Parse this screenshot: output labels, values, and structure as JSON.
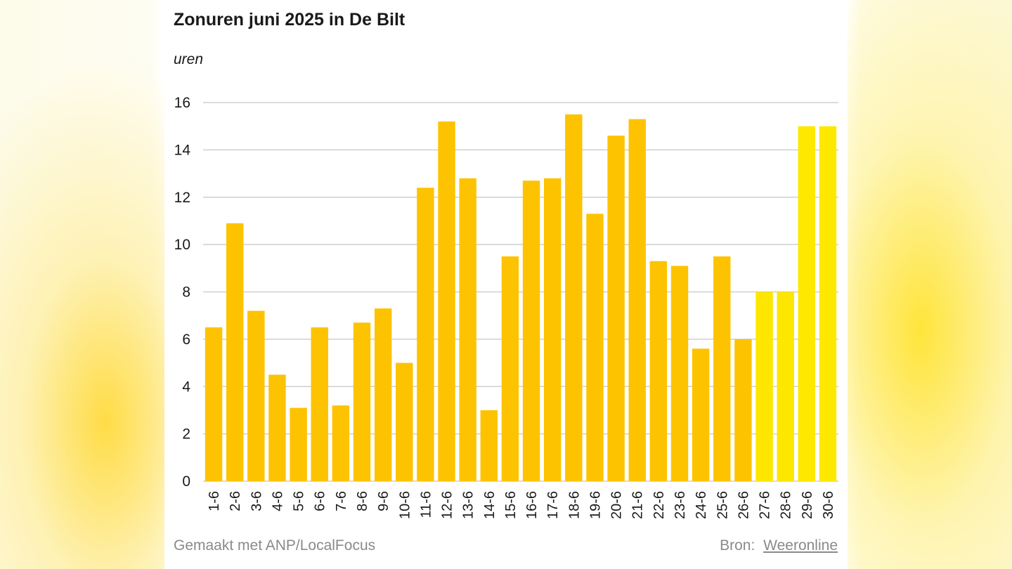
{
  "chart_data": {
    "type": "bar",
    "title": "Zonuren juni 2025 in De Bilt",
    "unit_label": "uren",
    "xlabel": "",
    "ylabel": "uren",
    "ylim": [
      0,
      16
    ],
    "yticks": [
      "0",
      "2",
      "4",
      "6",
      "8",
      "10",
      "12",
      "14",
      "16"
    ],
    "grid": true,
    "categories": [
      "1-6",
      "2-6",
      "3-6",
      "4-6",
      "5-6",
      "6-6",
      "7-6",
      "8-6",
      "9-6",
      "10-6",
      "11-6",
      "12-6",
      "13-6",
      "14-6",
      "15-6",
      "16-6",
      "17-6",
      "18-6",
      "19-6",
      "20-6",
      "21-6",
      "22-6",
      "23-6",
      "24-6",
      "25-6",
      "26-6",
      "27-6",
      "28-6",
      "29-6",
      "30-6"
    ],
    "values": [
      6.5,
      10.9,
      7.2,
      4.5,
      3.1,
      6.5,
      3.2,
      6.7,
      7.3,
      5.0,
      12.4,
      15.2,
      12.8,
      3.0,
      9.5,
      12.7,
      12.8,
      15.5,
      11.3,
      14.6,
      15.3,
      9.3,
      9.1,
      5.6,
      9.5,
      6.0,
      8.0,
      8.0,
      15.0,
      15.0
    ],
    "colors": {
      "measured": "#fdc300",
      "forecast_light": "#fde600",
      "forecast": "#fee800",
      "grid": "#cfcfcf",
      "axis_text": "#1a1a1a"
    },
    "bar_colors": [
      "#fdc300",
      "#fdc300",
      "#fdc300",
      "#fdc300",
      "#fdc300",
      "#fdc300",
      "#fdc300",
      "#fdc300",
      "#fdc300",
      "#fdc300",
      "#fdc300",
      "#fdc300",
      "#fdc300",
      "#fdc300",
      "#fdc300",
      "#fdc300",
      "#fdc300",
      "#fdc300",
      "#fdc300",
      "#fdc300",
      "#fdc300",
      "#fdc300",
      "#fdc300",
      "#fdc300",
      "#fdc300",
      "#fdc300",
      "#fde600",
      "#fde600",
      "#fee800",
      "#fee800"
    ]
  },
  "footer": {
    "made_with": "Gemaakt met ANP/LocalFocus",
    "source_prefix": "Bron:",
    "source_name": "Weeronline"
  }
}
